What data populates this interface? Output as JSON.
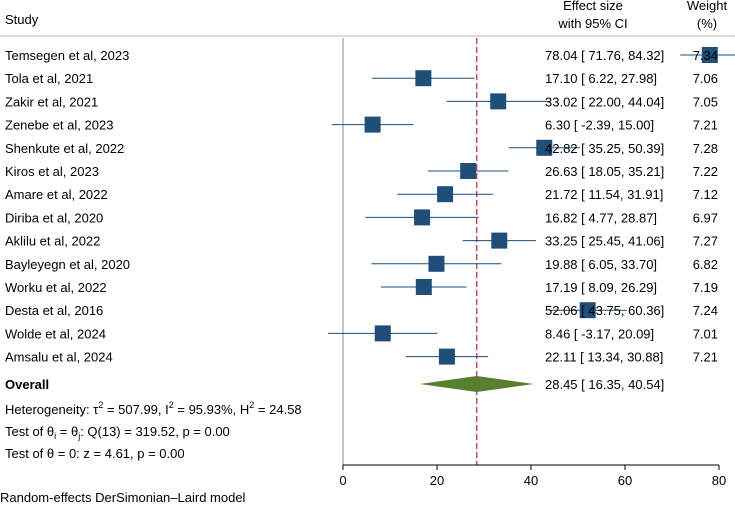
{
  "header": {
    "study_label": "Study",
    "effect_line1": "Effect size",
    "effect_line2": "with 95% CI",
    "weight_line1": "Weight",
    "weight_line2": "(%)"
  },
  "chart_data": {
    "type": "forest",
    "xlim": [
      0,
      80
    ],
    "xticks": [
      0,
      20,
      40,
      60,
      80
    ],
    "null_line": 0,
    "studies": [
      {
        "label": "Temsegen et al, 2023",
        "es": 78.04,
        "lo": 71.76,
        "hi": 84.32,
        "es_text": "78.04",
        "lo_text": "71.76",
        "hi_text": "84.32",
        "weight": "7.34"
      },
      {
        "label": "Tola et al, 2021",
        "es": 17.1,
        "lo": 6.22,
        "hi": 27.98,
        "es_text": "17.10",
        "lo_text": "6.22",
        "hi_text": "27.98",
        "weight": "7.06"
      },
      {
        "label": "Zakir et al, 2021",
        "es": 33.02,
        "lo": 22.0,
        "hi": 44.04,
        "es_text": "33.02",
        "lo_text": "22.00",
        "hi_text": "44.04",
        "weight": "7.05"
      },
      {
        "label": "Zenebe et al, 2023",
        "es": 6.3,
        "lo": -2.39,
        "hi": 15.0,
        "es_text": "6.30",
        "lo_text": "-2.39",
        "hi_text": "15.00",
        "weight": "7.21"
      },
      {
        "label": "Shenkute et al, 2022",
        "es": 42.82,
        "lo": 35.25,
        "hi": 50.39,
        "es_text": "42.82",
        "lo_text": "35.25",
        "hi_text": "50.39",
        "weight": "7.28"
      },
      {
        "label": "Kiros et al, 2023",
        "es": 26.63,
        "lo": 18.05,
        "hi": 35.21,
        "es_text": "26.63",
        "lo_text": "18.05",
        "hi_text": "35.21",
        "weight": "7.22"
      },
      {
        "label": "Amare et al, 2022",
        "es": 21.72,
        "lo": 11.54,
        "hi": 31.91,
        "es_text": "21.72",
        "lo_text": "11.54",
        "hi_text": "31.91",
        "weight": "7.12"
      },
      {
        "label": "Diriba et al, 2020",
        "es": 16.82,
        "lo": 4.77,
        "hi": 28.87,
        "es_text": "16.82",
        "lo_text": "4.77",
        "hi_text": "28.87",
        "weight": "6.97"
      },
      {
        "label": "Aklilu et al, 2022",
        "es": 33.25,
        "lo": 25.45,
        "hi": 41.06,
        "es_text": "33.25",
        "lo_text": "25.45",
        "hi_text": "41.06",
        "weight": "7.27"
      },
      {
        "label": "Bayleyegn et al, 2020",
        "es": 19.88,
        "lo": 6.05,
        "hi": 33.7,
        "es_text": "19.88",
        "lo_text": "6.05",
        "hi_text": "33.70",
        "weight": "6.82"
      },
      {
        "label": "Worku et al, 2022",
        "es": 17.19,
        "lo": 8.09,
        "hi": 26.29,
        "es_text": "17.19",
        "lo_text": "8.09",
        "hi_text": "26.29",
        "weight": "7.19"
      },
      {
        "label": "Desta et al, 2016",
        "es": 52.06,
        "lo": 43.75,
        "hi": 60.36,
        "es_text": "52.06",
        "lo_text": "43.75",
        "hi_text": "60.36",
        "weight": "7.24"
      },
      {
        "label": "Wolde et al, 2024",
        "es": 8.46,
        "lo": -3.17,
        "hi": 20.09,
        "es_text": "8.46",
        "lo_text": "-3.17",
        "hi_text": "20.09",
        "weight": "7.01"
      },
      {
        "label": "Amsalu et al, 2024",
        "es": 22.11,
        "lo": 13.34,
        "hi": 30.88,
        "es_text": "22.11",
        "lo_text": "13.34",
        "hi_text": "30.88",
        "weight": "7.21"
      }
    ],
    "overall": {
      "label": "Overall",
      "es": 28.45,
      "lo": 16.35,
      "hi": 40.54,
      "es_text": "28.45",
      "lo_text": "16.35",
      "hi_text": "40.54"
    },
    "heterogeneity": {
      "prefix": "Heterogeneity: τ",
      "tau_exp": "2",
      "tau_rest": " = 507.99, I",
      "i_exp": "2",
      "i_rest": " = 95.93%, H",
      "h_exp": "2",
      "h_rest": " = 24.58"
    },
    "test_groups": {
      "prefix": "Test of θ",
      "sub_i": "i",
      "mid": " = θ",
      "sub_j": "j",
      "rest": ": Q(13) = 319.52, p = 0.00"
    },
    "test_zero": "Test of θ = 0: z = 4.61, p = 0.00",
    "footnote": "Random-effects DerSimonian–Laird model",
    "colors": {
      "marker": "#1f4e79",
      "ci_line": "#1f4e79",
      "diamond": "#5a7f2f",
      "overall_line": "#c0354f",
      "null_line": "#888888"
    }
  }
}
